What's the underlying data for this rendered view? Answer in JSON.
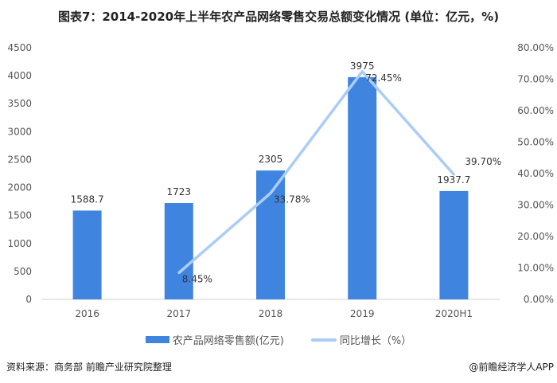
{
  "title": "图表7：2014-2020年上半年农产品网络零售交易总额变化情况 (单位：亿元，%)",
  "source": "资料来源：商务部 前瞻产业研究院整理",
  "credit": "@前瞻经济学人APP",
  "watermark": "前瞻产业研究院",
  "colors": {
    "bar": "#3f85e0",
    "line": "#abcdf5"
  },
  "chart_data": {
    "type": "bar+line",
    "categories": [
      "2016",
      "2017",
      "2018",
      "2019",
      "2020H1"
    ],
    "series": [
      {
        "name": "农产品网络零售额(亿元)",
        "type": "bar",
        "axis": "left",
        "values": [
          1588.7,
          1723,
          2305,
          3975,
          1937.7
        ],
        "labels": [
          "1588.7",
          "1723",
          "2305",
          "3975",
          "1937.7"
        ]
      },
      {
        "name": "同比增长（%）",
        "type": "line",
        "axis": "right",
        "values": [
          null,
          8.45,
          33.78,
          72.45,
          39.7
        ],
        "labels": [
          "",
          "8.45%",
          "33.78%",
          "72.45%",
          "39.70%"
        ]
      }
    ],
    "left_axis": {
      "ylim": [
        0,
        4500
      ],
      "ticks": [
        "0",
        "500",
        "1000",
        "1500",
        "2000",
        "2500",
        "3000",
        "3500",
        "4000",
        "4500"
      ]
    },
    "right_axis": {
      "ylim": [
        0,
        80
      ],
      "ticks": [
        "0.00%",
        "10.00%",
        "20.00%",
        "30.00%",
        "40.00%",
        "50.00%",
        "60.00%",
        "70.00%",
        "80.00%"
      ]
    },
    "grid": false,
    "legend": "bottom"
  }
}
